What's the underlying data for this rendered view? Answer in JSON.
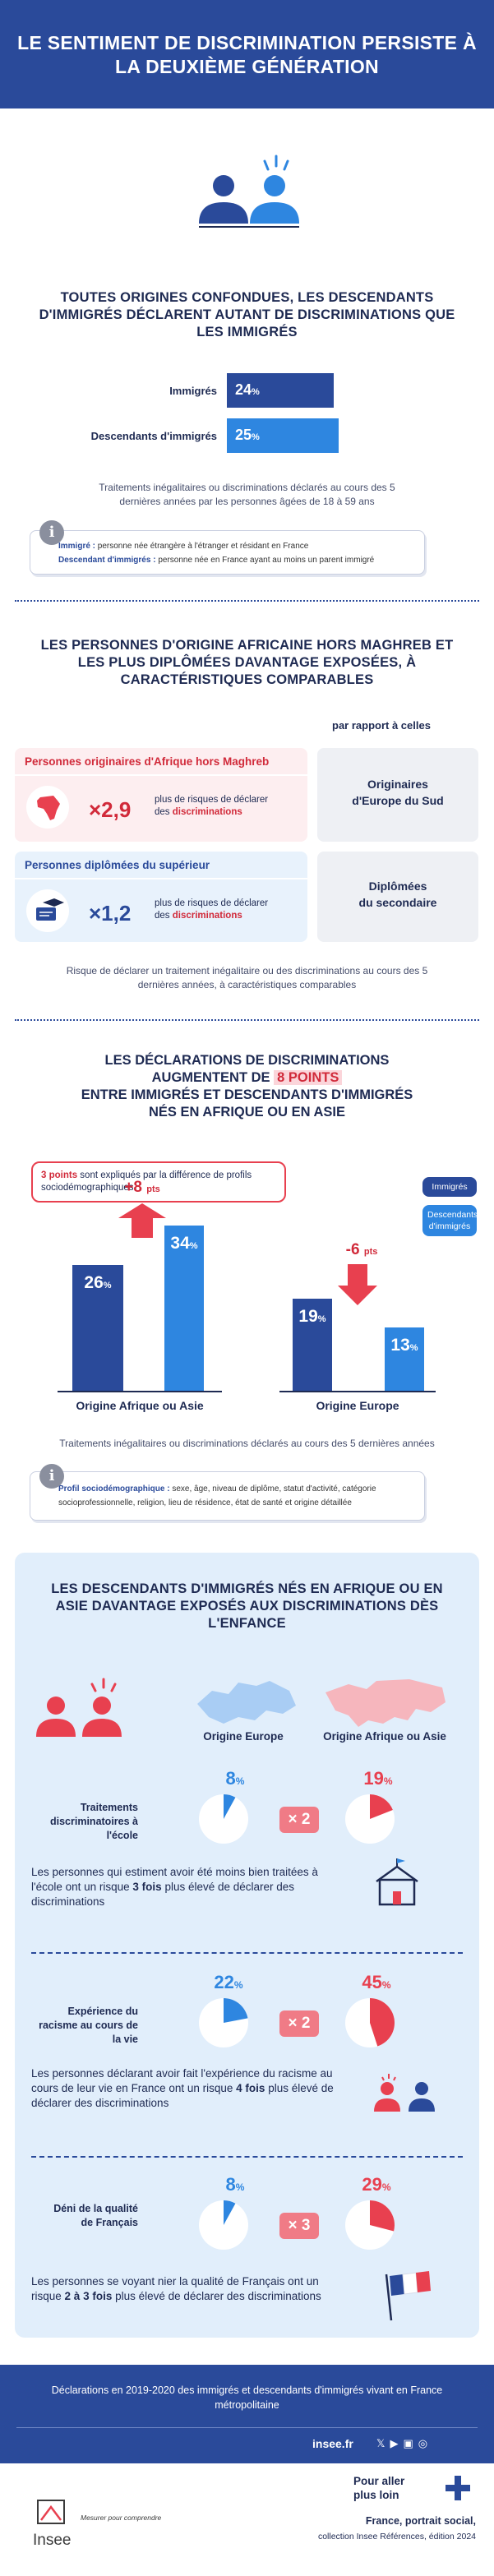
{
  "header": {
    "title": "Le sentiment de discrimination persiste à la deuxième génération"
  },
  "section1": {
    "title": "Toutes origines confondues, les descendants d'immigrés déclarent autant de discriminations que les immigrés",
    "bars": [
      {
        "label": "Immigrés",
        "value": "24",
        "unit": "%",
        "color": "#2a4a9a"
      },
      {
        "label": "Descendants d'immigrés",
        "value": "25",
        "unit": "%",
        "color": "#2e86e0"
      }
    ],
    "caption": "Traitements inégalitaires ou discriminations déclarés au cours des 5 dernières années par les personnes âgées de 18 à 59 ans",
    "definitions": [
      {
        "term": "Immigré :",
        "text": "personne née étrangère à l'étranger et résidant en France"
      },
      {
        "term": "Descendant d'immigrés :",
        "text": "personne née en France ayant au moins un parent immigré"
      }
    ]
  },
  "section2": {
    "title": "Les personnes d'origine africaine hors Maghreb et les plus diplômées davantage exposées, à caractéristiques comparables",
    "compare_label": "par rapport à celles",
    "card1": {
      "head": "Personnes originaires d'Afrique hors Maghreb",
      "mult": "×2,9",
      "text1": "plus de risques de déclarer",
      "text2": "des",
      "text3": "discriminations"
    },
    "card1_ref": {
      "line1": "Originaires",
      "line2": "d'Europe du Sud"
    },
    "card2": {
      "head": "Personnes diplômées du supérieur",
      "mult": "×1,2",
      "text1": "plus de risques de déclarer",
      "text2": "des",
      "text3": "discriminations"
    },
    "card2_ref": {
      "line1": "Diplômées",
      "line2": "du secondaire"
    },
    "caption": "Risque de déclarer un traitement inégalitaire ou des discriminations au cours des 5 dernières années, à caractéristiques comparables",
    "colors": {
      "pink": "#e8404f",
      "blue": "#2a4a9a"
    }
  },
  "section3": {
    "title_line1": "Les déclarations de discriminations",
    "title_line2a": "augmentent de",
    "title_highlight": "8 points",
    "title_line3": "entre immigrés et descendants d'immigrés",
    "title_line4": "nés en Afrique ou en Asie",
    "annotation_bold": "3 points",
    "annotation_text": "sont expliqués par la différence de profils sociodémographiques",
    "legend": [
      "Immigrés",
      "Descendants d'immigrés"
    ],
    "chart_data": {
      "type": "bar",
      "categories": [
        "Origine Afrique ou Asie",
        "Origine Europe"
      ],
      "series": [
        {
          "name": "Immigrés",
          "values": [
            26,
            19
          ]
        },
        {
          "name": "Descendants d'immigrés",
          "values": [
            34,
            13
          ]
        }
      ],
      "differences": [
        "+8",
        "-6"
      ],
      "difference_unit": "pts",
      "value_unit": "%",
      "ylim": [
        0,
        40
      ]
    },
    "caption": "Traitements inégalitaires ou discriminations déclarés au cours des 5 dernières années",
    "definition_term": "Profil sociodémographique :",
    "definition_text": "sexe, âge, niveau de diplôme, statut d'activité, catégorie socioprofessionnelle, religion, lieu de résidence, état de santé et origine détaillée"
  },
  "section4": {
    "title": "Les descendants d'immigrés nés en Afrique ou en Asie davantage exposés aux discriminations dès l'enfance",
    "col1": "Origine Europe",
    "col2": "Origine Afrique ou Asie",
    "rows": [
      {
        "label": "Traitements discriminatoires à l'école",
        "europe": 8,
        "afrique": 19,
        "factor": "× 2",
        "stmt_a": "Les personnes qui estiment avoir été moins bien traitées à l'école ont un risque",
        "stmt_b": "3 fois",
        "stmt_c": "plus élevé de déclarer des discriminations"
      },
      {
        "label": "Expérience du racisme au cours de la vie",
        "europe": 22,
        "afrique": 45,
        "factor": "× 2",
        "stmt_a": "Les personnes déclarant avoir fait l'expérience du racisme au cours de leur vie en France ont un risque",
        "stmt_b": "4 fois",
        "stmt_c": "plus élevé de déclarer des discriminations"
      },
      {
        "label": "Déni de la qualité de Français",
        "europe": 8,
        "afrique": 29,
        "factor": "× 3",
        "stmt_a": "Les personnes se voyant nier la qualité de Français ont un risque",
        "stmt_b": "2 à 3 fois",
        "stmt_c": "plus élevé de déclarer des discriminations"
      }
    ],
    "unit": "%",
    "colors": {
      "europe": "#2e86e0",
      "afrique": "#e8404f"
    }
  },
  "footer": {
    "note": "Déclarations en 2019-2020 des immigrés et descendants d'immigrés vivant en France métropolitaine",
    "site": "insee.fr",
    "brand": "Insee",
    "tagline": "Mesurer pour comprendre",
    "more_line1": "Pour aller",
    "more_line2": "plus loin",
    "ref_bold": "France, portrait social,",
    "ref_text": "collection Insee Références, édition 2024"
  }
}
